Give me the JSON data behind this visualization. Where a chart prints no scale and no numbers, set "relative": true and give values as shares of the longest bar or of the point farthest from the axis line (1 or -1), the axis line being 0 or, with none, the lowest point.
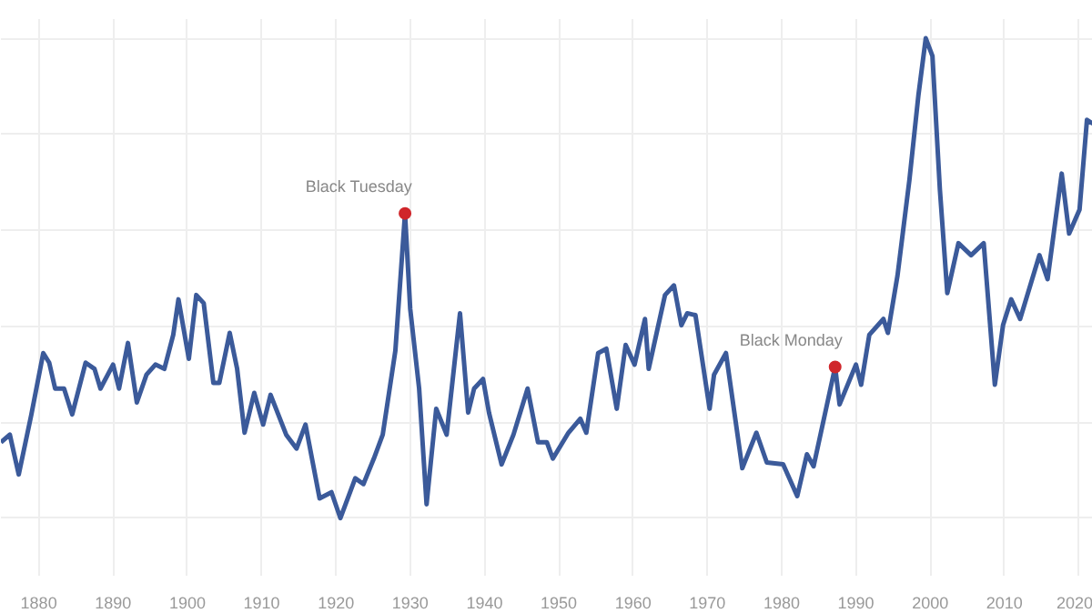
{
  "chart_data": {
    "type": "line",
    "relative": true,
    "grid": true,
    "xlim": [
      1874.9,
      2021.9
    ],
    "xticks": [
      1880,
      1890,
      1900,
      1910,
      1920,
      1930,
      1940,
      1950,
      1960,
      1970,
      1980,
      1990,
      2000,
      2010,
      2020
    ],
    "series": [
      {
        "color": "#3b5a9a",
        "x": [
          1874.9,
          1876.1,
          1877.3,
          1879.0,
          1880.6,
          1881.4,
          1882.2,
          1883.4,
          1884.5,
          1886.3,
          1887.5,
          1888.3,
          1890.0,
          1890.8,
          1892.0,
          1893.2,
          1894.5,
          1895.7,
          1896.9,
          1898.1,
          1898.8,
          1900.2,
          1901.2,
          1902.2,
          1903.5,
          1904.3,
          1905.7,
          1906.7,
          1907.7,
          1909.0,
          1910.2,
          1911.2,
          1913.3,
          1914.7,
          1915.9,
          1917.8,
          1919.4,
          1920.6,
          1922.6,
          1923.7,
          1925.1,
          1926.3,
          1928.0,
          1929.3,
          1930.0,
          1931.2,
          1932.2,
          1933.5,
          1934.9,
          1936.7,
          1937.8,
          1938.6,
          1939.8,
          1940.6,
          1942.3,
          1943.9,
          1945.8,
          1947.2,
          1948.4,
          1949.2,
          1951.3,
          1952.9,
          1953.7,
          1955.3,
          1956.4,
          1957.8,
          1959.0,
          1960.2,
          1961.6,
          1962.1,
          1964.3,
          1965.5,
          1966.5,
          1967.3,
          1968.4,
          1970.3,
          1970.9,
          1972.5,
          1974.7,
          1976.6,
          1978.0,
          1980.2,
          1982.1,
          1983.4,
          1984.3,
          1987.2,
          1987.8,
          1990.0,
          1990.7,
          1991.8,
          1993.7,
          1994.3,
          1995.6,
          1997.2,
          1998.4,
          1999.4,
          2000.3,
          2001.3,
          2002.3,
          2003.8,
          2005.5,
          2007.2,
          2008.7,
          2009.8,
          2010.9,
          2012.1,
          2014.7,
          2015.8,
          2017.7,
          2018.7,
          2020.1,
          2021.1,
          2021.9
        ],
        "values": [
          0.158,
          0.174,
          0.091,
          0.216,
          0.344,
          0.324,
          0.27,
          0.27,
          0.216,
          0.324,
          0.311,
          0.27,
          0.32,
          0.27,
          0.365,
          0.241,
          0.299,
          0.32,
          0.311,
          0.382,
          0.456,
          0.332,
          0.465,
          0.448,
          0.282,
          0.282,
          0.386,
          0.311,
          0.178,
          0.261,
          0.195,
          0.257,
          0.174,
          0.145,
          0.195,
          0.041,
          0.054,
          0,
          0.083,
          0.071,
          0.124,
          0.174,
          0.349,
          0.635,
          0.436,
          0.27,
          0.029,
          0.228,
          0.174,
          0.427,
          0.22,
          0.27,
          0.29,
          0.22,
          0.112,
          0.174,
          0.27,
          0.158,
          0.158,
          0.124,
          0.178,
          0.207,
          0.178,
          0.344,
          0.353,
          0.228,
          0.361,
          0.32,
          0.415,
          0.311,
          0.465,
          0.485,
          0.402,
          0.427,
          0.423,
          0.228,
          0.299,
          0.344,
          0.104,
          0.178,
          0.116,
          0.112,
          0.046,
          0.133,
          0.108,
          0.315,
          0.237,
          0.32,
          0.278,
          0.382,
          0.415,
          0.386,
          0.506,
          0.705,
          0.88,
          1.0,
          0.963,
          0.685,
          0.469,
          0.573,
          0.548,
          0.573,
          0.278,
          0.402,
          0.456,
          0.415,
          0.548,
          0.498,
          0.718,
          0.593,
          0.643,
          0.83,
          0.822
        ]
      },
      {
        "type": "scatter",
        "marker": "circle",
        "color": "#d0262b",
        "x": [
          1929.3,
          1987.2
        ],
        "values": [
          0.635,
          0.315
        ]
      }
    ],
    "annotations": [
      {
        "text": "Black Tuesday",
        "x": 1929.3,
        "y": 0.635
      },
      {
        "text": "Black Monday",
        "x": 1987.2,
        "y": 0.315
      }
    ]
  }
}
